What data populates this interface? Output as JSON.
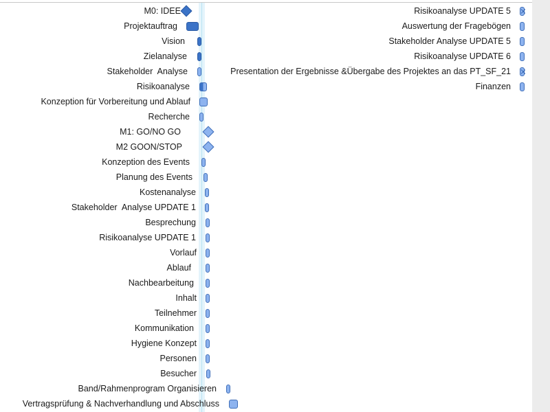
{
  "colors": {
    "bar_fill": "#8db3ef",
    "bar_border": "#3f6eb8",
    "bar_dark": "#3b73c7",
    "today_band": "#e4f4fb"
  },
  "left_tasks": [
    {
      "label": "M0: IDEE",
      "kind": "milestone-dark"
    },
    {
      "label": "Projektauftrag",
      "kind": "bar-dark"
    },
    {
      "label": "Vision",
      "kind": "bar-dark"
    },
    {
      "label": "Zielanalyse",
      "kind": "bar-dark"
    },
    {
      "label": "Stakeholder  Analyse",
      "kind": "bar"
    },
    {
      "label": "Risikoanalyse",
      "kind": "bar-half"
    },
    {
      "label": "Konzeption für Vorbereitung und Ablauf",
      "kind": "bar"
    },
    {
      "label": "Recherche",
      "kind": "bar"
    },
    {
      "label": "M1: GO/NO GO",
      "kind": "milestone"
    },
    {
      "label": "M2 GOON/STOP",
      "kind": "milestone"
    },
    {
      "label": "Konzeption des Events",
      "kind": "bar"
    },
    {
      "label": "Planung des Events",
      "kind": "bar"
    },
    {
      "label": "Kostenanalyse",
      "kind": "bar"
    },
    {
      "label": "Stakeholder  Analyse UPDATE 1",
      "kind": "bar"
    },
    {
      "label": "Besprechung",
      "kind": "bar"
    },
    {
      "label": "Risikoanalyse UPDATE 1",
      "kind": "bar"
    },
    {
      "label": "Vorlauf",
      "kind": "bar"
    },
    {
      "label": "Ablauf",
      "kind": "bar"
    },
    {
      "label": "Nachbearbeitung",
      "kind": "bar"
    },
    {
      "label": "Inhalt",
      "kind": "bar"
    },
    {
      "label": "Teilnehmer",
      "kind": "bar"
    },
    {
      "label": "Kommunikation",
      "kind": "bar"
    },
    {
      "label": "Hygiene Konzept",
      "kind": "bar"
    },
    {
      "label": "Personen",
      "kind": "bar"
    },
    {
      "label": "Besucher",
      "kind": "bar"
    },
    {
      "label": "Band/Rahmenprogram Organisieren",
      "kind": "bar"
    },
    {
      "label": "Vertragsprüfung & Nachverhandlung und Abschluss",
      "kind": "bar"
    }
  ],
  "right_tasks": [
    {
      "label": "Risikoanalyse UPDATE 5",
      "kind": "bar-marker"
    },
    {
      "label": "Auswertung der Fragebögen",
      "kind": "bar"
    },
    {
      "label": "Stakeholder Analyse UPDATE 5",
      "kind": "bar"
    },
    {
      "label": "Risikoanalyse UPDATE 6",
      "kind": "bar"
    },
    {
      "label": "Presentation der Ergebnisse &Übergabe des Projektes an das PT_SF_21",
      "kind": "bar-marker"
    },
    {
      "label": "Finanzen",
      "kind": "bar"
    }
  ]
}
